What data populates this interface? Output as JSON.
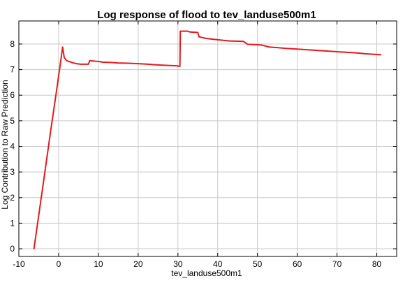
{
  "chart_data": {
    "type": "line",
    "title": "Log response of flood to tev_landuse500m1",
    "xlabel": "tev_landuse500m1",
    "ylabel": "Log Contribution to Raw Prediction",
    "xlim": [
      -10,
      85
    ],
    "ylim": [
      -0.3,
      8.9
    ],
    "xticks": [
      -10,
      0,
      10,
      20,
      30,
      40,
      50,
      60,
      70,
      80
    ],
    "yticks": [
      0,
      1,
      2,
      3,
      4,
      5,
      6,
      7,
      8
    ],
    "grid": true,
    "series": [
      {
        "color": "#e41a1c",
        "x": [
          -6.2,
          -4,
          -2,
          -0.5,
          0.5,
          1.0,
          1.4,
          2.0,
          3.5,
          4.5,
          5.5,
          7.5,
          7.8,
          9.0,
          10.5,
          11.0,
          13.0,
          15.0,
          17.5,
          20.0,
          22.5,
          24.0,
          26.5,
          29.5,
          30.5,
          30.6,
          32.5,
          33.0,
          35.0,
          35.3,
          37.0,
          38.0,
          41.0,
          43.0,
          46.5,
          47.5,
          49.0,
          51.0,
          53.0,
          55.0,
          57.0,
          59.0,
          61.0,
          63.0,
          65.0,
          67.0,
          69.0,
          71.0,
          73.0,
          75.0,
          77.0,
          79.0,
          81.0
        ],
        "y": [
          0.0,
          2.4,
          4.6,
          6.2,
          7.3,
          7.88,
          7.48,
          7.35,
          7.27,
          7.23,
          7.21,
          7.21,
          7.35,
          7.33,
          7.31,
          7.29,
          7.28,
          7.26,
          7.25,
          7.23,
          7.21,
          7.19,
          7.17,
          7.15,
          7.13,
          8.5,
          8.5,
          8.47,
          8.45,
          8.28,
          8.22,
          8.2,
          8.15,
          8.12,
          8.1,
          7.99,
          7.98,
          7.96,
          7.88,
          7.86,
          7.83,
          7.81,
          7.79,
          7.77,
          7.75,
          7.73,
          7.71,
          7.69,
          7.67,
          7.65,
          7.62,
          7.6,
          7.58
        ]
      }
    ]
  }
}
